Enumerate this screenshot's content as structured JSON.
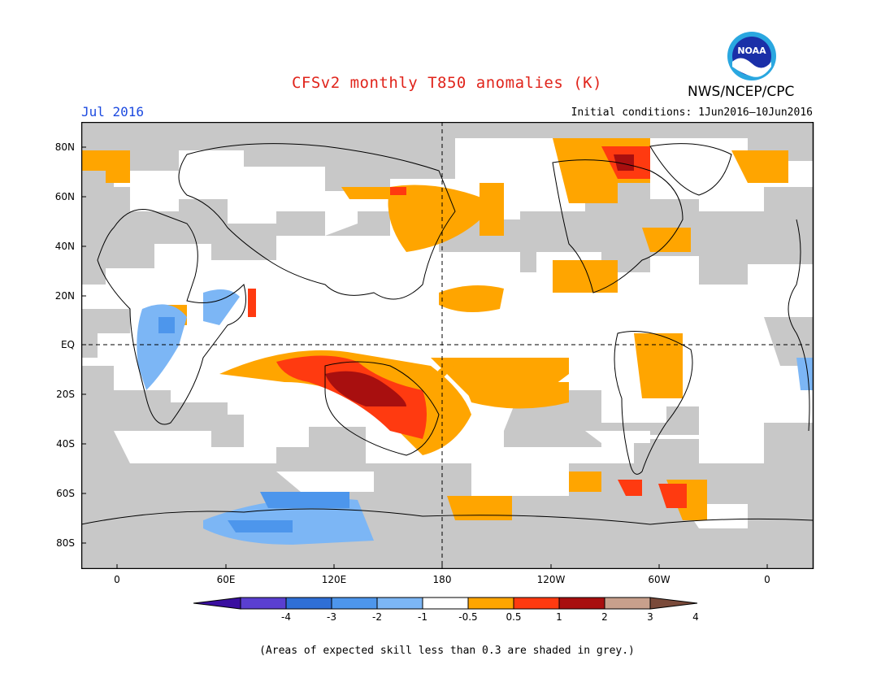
{
  "title": "CFSv2 monthly T850 anomalies (K)",
  "month": "Jul 2016",
  "initial_conditions": "Initial conditions: 1Jun2016–10Jun2016",
  "organization": "NWS/NCEP/CPC",
  "logo_text": "NOAA",
  "footnote": "(Areas of expected skill less than 0.3 are shaded in grey.)",
  "latitude_labels": [
    "80N",
    "60N",
    "40N",
    "20N",
    "EQ",
    "20S",
    "40S",
    "60S",
    "80S"
  ],
  "longitude_labels": [
    "0",
    "60E",
    "120E",
    "180",
    "120W",
    "60W",
    "0"
  ],
  "colorbar": {
    "labels": [
      "-4",
      "-3",
      "-2",
      "-1",
      "-0.5",
      "0.5",
      "1",
      "2",
      "3",
      "4"
    ],
    "colors": [
      "#3a0fa0",
      "#5a3fd0",
      "#2f6fd6",
      "#4d96ec",
      "#7cb6f5",
      "#ffffff",
      "#ffa500",
      "#ff3a10",
      "#a80f0f",
      "#c8a08c",
      "#7a4a3a"
    ]
  },
  "colors": {
    "skill_grey": "#c8c8c8",
    "title_red": "#e0241b",
    "month_blue": "#1d4be0"
  }
}
